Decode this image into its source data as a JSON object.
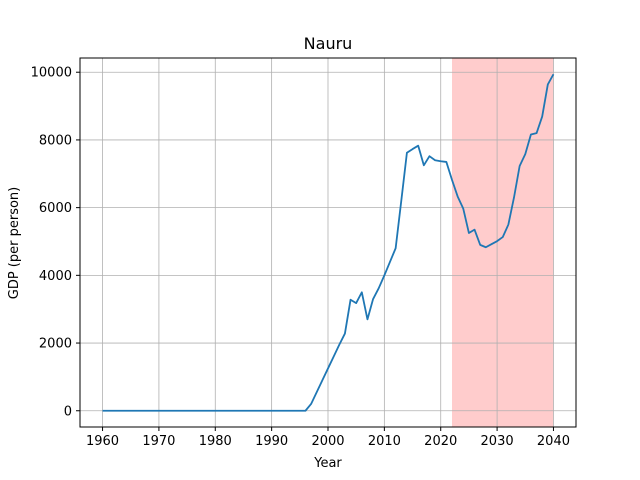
{
  "chart_data": {
    "type": "line",
    "title": "Nauru",
    "xlabel": "Year",
    "ylabel": "GDP (per person)",
    "xlim": [
      1956,
      2044
    ],
    "ylim": [
      -480,
      10420
    ],
    "x_ticks": [
      1960,
      1970,
      1980,
      1990,
      2000,
      2010,
      2020,
      2030,
      2040
    ],
    "y_ticks": [
      0,
      2000,
      4000,
      6000,
      8000,
      10000
    ],
    "grid": true,
    "line_color": "#1f77b4",
    "shaded_region": {
      "x_start": 2022,
      "x_end": 2040,
      "color": "#ffcccc"
    },
    "series": [
      {
        "x": [
          1960,
          1970,
          1980,
          1990,
          1996,
          1997,
          1998,
          1999,
          2000,
          2001,
          2002,
          2003,
          2004,
          2005,
          2006,
          2007,
          2008,
          2009,
          2010,
          2011,
          2012,
          2013,
          2014,
          2015,
          2016,
          2017,
          2018,
          2019,
          2020,
          2021,
          2022,
          2023,
          2024,
          2025,
          2026,
          2027,
          2028,
          2029,
          2030,
          2031,
          2032,
          2033,
          2034,
          2035,
          2036,
          2037,
          2038,
          2039,
          2040
        ],
        "y": [
          0,
          0,
          0,
          0,
          0,
          200,
          550,
          900,
          1250,
          1600,
          1950,
          2280,
          3280,
          3180,
          3500,
          2700,
          3300,
          3620,
          4000,
          4400,
          4800,
          6200,
          7620,
          7730,
          7830,
          7250,
          7520,
          7400,
          7370,
          7350,
          6820,
          6330,
          5970,
          5250,
          5350,
          4900,
          4830,
          4920,
          5010,
          5130,
          5500,
          6300,
          7230,
          7580,
          8160,
          8200,
          8690,
          9640,
          9940
        ]
      }
    ]
  }
}
